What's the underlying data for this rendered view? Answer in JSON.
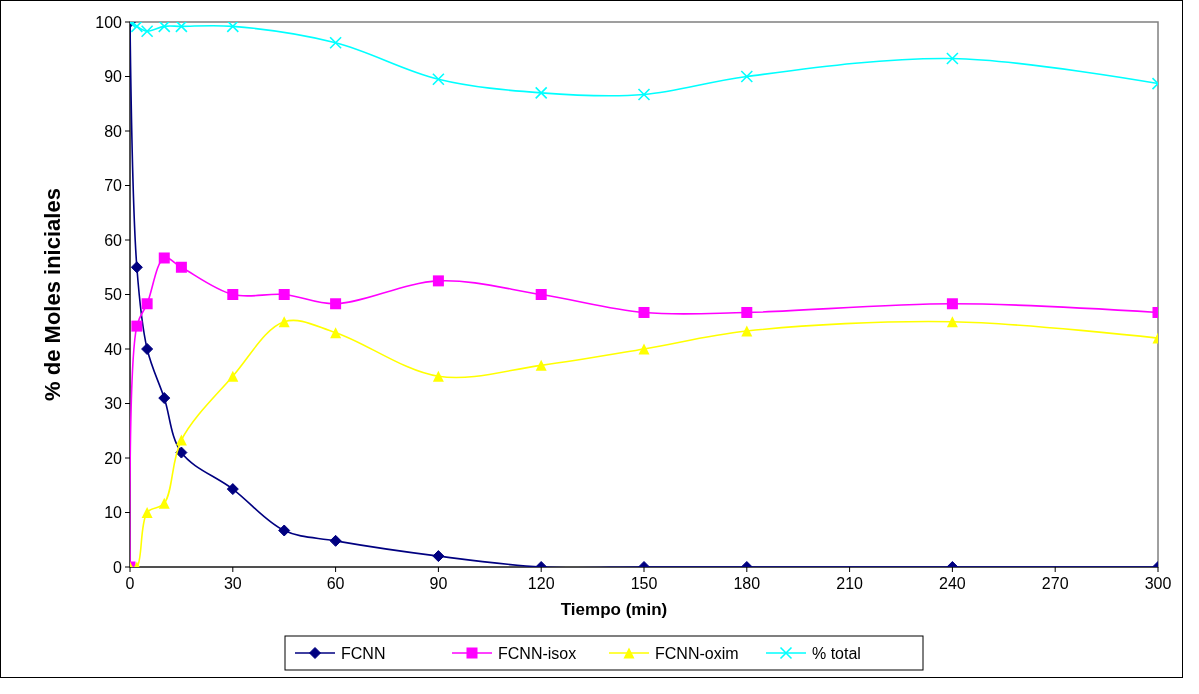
{
  "chart_data": {
    "type": "line",
    "xlabel": "Tiempo (min)",
    "ylabel": "% de Moles iniciales",
    "xlim": [
      0,
      300
    ],
    "xticks": [
      0,
      30,
      60,
      90,
      120,
      150,
      180,
      210,
      240,
      270,
      300
    ],
    "ylim": [
      0,
      100
    ],
    "yticks": [
      0,
      10,
      20,
      30,
      40,
      50,
      60,
      70,
      80,
      90,
      100
    ],
    "grid": false,
    "legend": "bottom",
    "x": [
      0,
      2,
      5,
      10,
      15,
      30,
      45,
      60,
      90,
      120,
      150,
      180,
      240,
      300
    ],
    "series": [
      {
        "name": "FCNN",
        "color": "#000080",
        "marker": "diamond",
        "values": [
          100,
          55,
          40,
          31,
          21,
          14.3,
          6.7,
          4.8,
          2,
          0,
          0,
          0,
          0,
          0
        ]
      },
      {
        "name": "FCNN-isox",
        "color": "#ff00ff",
        "marker": "square",
        "values": [
          0,
          44.2,
          48.3,
          56.7,
          55,
          50,
          50,
          48.3,
          52.5,
          50,
          46.7,
          46.7,
          48.3,
          46.7
        ]
      },
      {
        "name": "FCNN-oxim",
        "color": "#ffff00",
        "marker": "triangle",
        "values": [
          0,
          0,
          10,
          11.7,
          23.3,
          35,
          45,
          43,
          35,
          37,
          40,
          43.3,
          45,
          42
        ]
      },
      {
        "name": "% total",
        "color": "#00ffff",
        "marker": "cross",
        "values": [
          100,
          99.2,
          98.3,
          99.2,
          99.2,
          99.2,
          null,
          96.2,
          89.5,
          87,
          86.7,
          90,
          93.3,
          88.7
        ]
      }
    ]
  }
}
